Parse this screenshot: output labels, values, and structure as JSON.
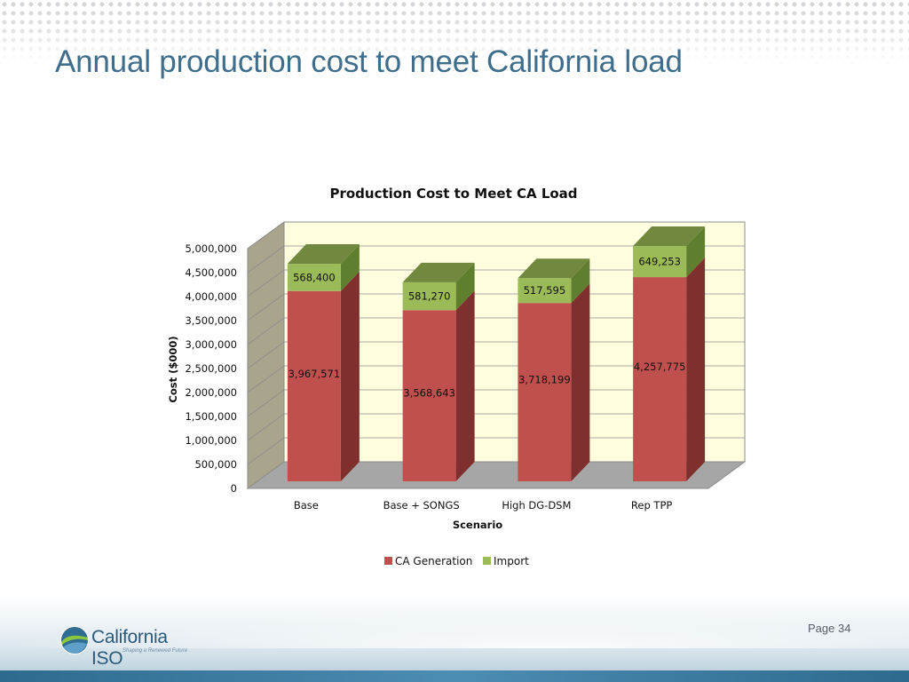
{
  "slide": {
    "title": "Annual production cost to meet California load",
    "page_number": "Page 34"
  },
  "logo": {
    "name": "California ISO",
    "tagline": "Shaping a Renewed Future"
  },
  "colors": {
    "title": "#3f6e8c",
    "ca_generation": "#c0504d",
    "ca_generation_side": "#7f2f2e",
    "import": "#9bbb59",
    "import_top": "#71893f",
    "plot_background": "#ffffe0",
    "floor": "#a6a6a6"
  },
  "chart_data": {
    "type": "bar",
    "stacked": true,
    "three_d": true,
    "title": "Production Cost to Meet CA Load",
    "xlabel": "Scenario",
    "ylabel": "Cost ($000)",
    "ylim": [
      0,
      5000000
    ],
    "yticks": [
      0,
      500000,
      1000000,
      1500000,
      2000000,
      2500000,
      3000000,
      3500000,
      4000000,
      4500000,
      5000000
    ],
    "ytick_labels": [
      "0",
      "500,000",
      "1,000,000",
      "1,500,000",
      "2,000,000",
      "2,500,000",
      "3,000,000",
      "3,500,000",
      "4,000,000",
      "4,500,000",
      "5,000,000"
    ],
    "grid": true,
    "legend_position": "bottom",
    "categories": [
      "Base",
      "Base + SONGS",
      "High DG-DSM",
      "Rep TPP"
    ],
    "series": [
      {
        "name": "CA Generation",
        "values": [
          3967571,
          3568643,
          3718199,
          4257775
        ],
        "labels": [
          "3,967,571",
          "3,568,643",
          "3,718,199",
          "4,257,775"
        ]
      },
      {
        "name": "Import",
        "values": [
          568400,
          581270,
          517595,
          649253
        ],
        "labels": [
          "568,400",
          "581,270",
          "517,595",
          "649,253"
        ]
      }
    ]
  }
}
